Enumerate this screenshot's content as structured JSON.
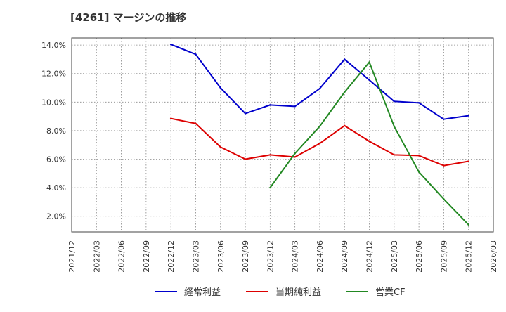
{
  "chart_data": {
    "type": "line",
    "title": "[4261]  マージンの推移",
    "xlabel": "",
    "ylabel": "",
    "ylim": [
      0.9,
      14.5
    ],
    "yticks": [
      2.0,
      4.0,
      6.0,
      8.0,
      10.0,
      12.0,
      14.0
    ],
    "ytick_labels": [
      "2.0%",
      "4.0%",
      "6.0%",
      "8.0%",
      "10.0%",
      "12.0%",
      "14.0%"
    ],
    "categories": [
      "2021/12",
      "2022/03",
      "2022/06",
      "2022/09",
      "2022/12",
      "2023/03",
      "2023/06",
      "2023/09",
      "2023/12",
      "2024/03",
      "2024/06",
      "2024/09",
      "2024/12",
      "2025/03",
      "2025/06",
      "2025/09",
      "2025/12",
      "2026/03"
    ],
    "grid": true,
    "legend_position": "bottom",
    "series": [
      {
        "name": "経常利益",
        "color": "#0000cc",
        "values": [
          null,
          null,
          null,
          null,
          14.05,
          13.35,
          11.0,
          9.2,
          9.8,
          9.7,
          10.95,
          13.0,
          11.55,
          10.05,
          9.95,
          8.8,
          9.05,
          null
        ]
      },
      {
        "name": "当期純利益",
        "color": "#dd0000",
        "values": [
          null,
          null,
          null,
          null,
          8.85,
          8.5,
          6.85,
          6.0,
          6.3,
          6.15,
          7.1,
          8.35,
          7.25,
          6.3,
          6.25,
          5.55,
          5.85,
          null
        ]
      },
      {
        "name": "営業CF",
        "color": "#228822",
        "values": [
          null,
          null,
          null,
          null,
          null,
          null,
          null,
          null,
          4.0,
          6.4,
          8.3,
          10.7,
          12.8,
          8.3,
          5.1,
          3.2,
          1.4,
          null
        ]
      }
    ]
  }
}
